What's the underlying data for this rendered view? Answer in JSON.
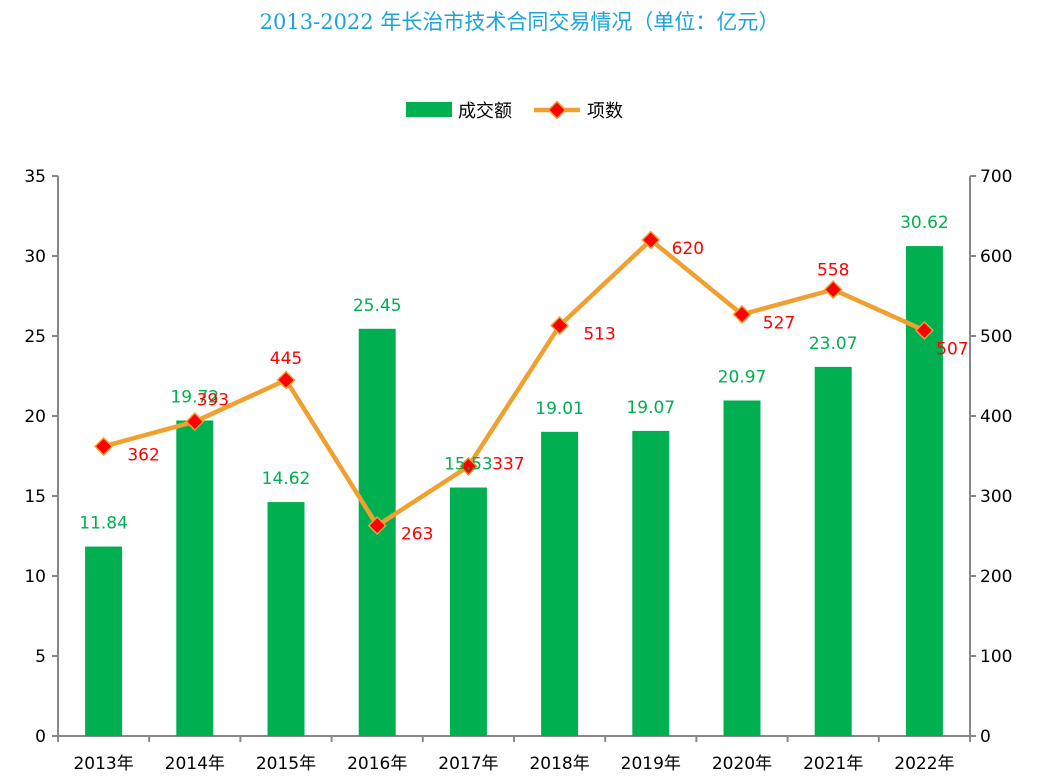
{
  "chart_data": {
    "type": "bar",
    "title": "2013-2022 年长治市技术合同交易情况（单位：亿元）",
    "categories": [
      "2013年",
      "2014年",
      "2015年",
      "2016年",
      "2017年",
      "2018年",
      "2019年",
      "2020年",
      "2021年",
      "2022年"
    ],
    "series": [
      {
        "name": "成交额",
        "type": "bar",
        "axis": "left",
        "color": "#00b050",
        "values": [
          11.84,
          19.72,
          14.62,
          25.45,
          15.53,
          19.01,
          19.07,
          20.97,
          23.07,
          30.62
        ],
        "labels": [
          "11.84",
          "19.72",
          "14.62",
          "25.45",
          "15.53",
          "19.01",
          "19.07",
          "20.97",
          "23.07",
          "30.62"
        ]
      },
      {
        "name": "项数",
        "type": "line",
        "axis": "right",
        "color": "#f0a030",
        "marker_color": "#ff0000",
        "values": [
          362,
          393,
          445,
          263,
          337,
          513,
          620,
          527,
          558,
          507
        ],
        "labels": [
          "362",
          "393",
          "445",
          "263",
          "337",
          "513",
          "620",
          "527",
          "558",
          "507"
        ]
      }
    ],
    "y_left": {
      "min": 0,
      "max": 35,
      "step": 5,
      "ticks": [
        "0",
        "5",
        "10",
        "15",
        "20",
        "25",
        "30",
        "35"
      ]
    },
    "y_right": {
      "min": 0,
      "max": 700,
      "step": 100,
      "ticks": [
        "0",
        "100",
        "200",
        "300",
        "400",
        "500",
        "600",
        "700"
      ]
    },
    "legend": {
      "position": "top",
      "items": [
        "成交额",
        "项数"
      ]
    },
    "grid": false,
    "xlabel": "",
    "ylabel": ""
  }
}
